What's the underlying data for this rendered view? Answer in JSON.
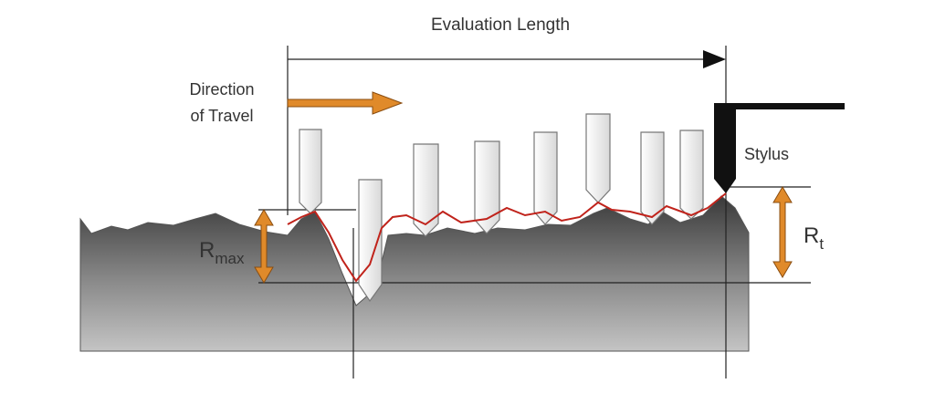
{
  "evaluation_length": "Evaluation Length",
  "direction_of_travel": [
    "Direction",
    "of Travel"
  ],
  "stylus": "Stylus",
  "rmax": {
    "base": "R",
    "sub": "max"
  },
  "rt": {
    "base": "R",
    "sub": "t"
  }
}
